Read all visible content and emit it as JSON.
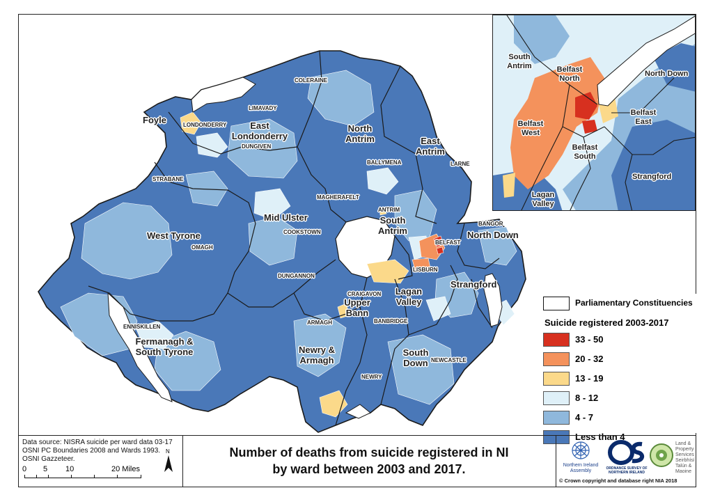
{
  "title_line1": "Number of deaths from suicide registered in NI",
  "title_line2": "by ward between 2003 and 2017.",
  "source_lines": [
    "Data source: NISRA suicide per ward data 03-17",
    "OSNI PC Boundaries 2008 and Wards 1993.",
    "OSNI Gazzeteer."
  ],
  "scale_bar": {
    "labels": [
      "0",
      "5",
      "10",
      "20 Miles"
    ]
  },
  "north_arrow_label": "N",
  "copyright": "© Crown copyright and database right NIA 2018",
  "logos": {
    "nia": "Northern Ireland Assembly",
    "os": "ORDNANCE SURVEY OF NORTHERN IRELAND",
    "lps": [
      "Land &",
      "Property",
      "Services",
      "Seirbhísí",
      "Talún &",
      "Maoine"
    ]
  },
  "legend": {
    "boundary_label": "Parliamentary Constituencies",
    "heading": "Suicide registered 2003-2017",
    "classes": [
      {
        "label": "33 - 50",
        "color": "#d7301f"
      },
      {
        "label": "20 - 32",
        "color": "#f4925c"
      },
      {
        "label": "13 - 19",
        "color": "#fbd98a"
      },
      {
        "label": "8 - 12",
        "color": "#dff0f8"
      },
      {
        "label": "4 - 7",
        "color": "#8fb8dc"
      },
      {
        "label": "Less than 4",
        "color": "#4a78b8"
      }
    ]
  },
  "constituencies": {
    "foyle": "Foyle",
    "east_londonderry": [
      "East",
      "Londonderry"
    ],
    "north_antrim": [
      "North",
      "Antrim"
    ],
    "east_antrim": [
      "East",
      "Antrim"
    ],
    "mid_ulster": "Mid Ulster",
    "west_tyrone": "West Tyrone",
    "south_antrim": [
      "South",
      "Antrim"
    ],
    "north_down": "North Down",
    "lagan_valley": [
      "Lagan",
      "Valley"
    ],
    "strangford": "Strangford",
    "upper_bann": [
      "Upper",
      "Bann"
    ],
    "fermanagh_south_tyrone": [
      "Fermanagh &",
      "South Tyrone"
    ],
    "newry_armagh": [
      "Newry &",
      "Armagh"
    ],
    "south_down": [
      "South",
      "Down"
    ]
  },
  "towns": {
    "coleraine": "COLERAINE",
    "limavady": "LIMAVADY",
    "londonderry": "LONDONDERRY",
    "dungiven": "DUNGIVEN",
    "ballymena": "BALLYMENA",
    "larne": "LARNE",
    "strabane": "STRABANE",
    "magherafelt": "MAGHERAFELT",
    "antrim": "ANTRIM",
    "cookstown": "COOKSTOWN",
    "omagh": "OMAGH",
    "bangor": "BANGOR",
    "belfast": "BELFAST",
    "lisburn": "LISBURN",
    "dungannon": "DUNGANNON",
    "craigavon": "CRAIGAVON",
    "armagh": "ARMAGH",
    "banbridge": "BANBRIDGE",
    "enniskillen": "ENNISKILLEN",
    "newcastle": "NEWCASTLE",
    "newry": "NEWRY"
  },
  "inset": {
    "south_antrim": [
      "South",
      "Antrim"
    ],
    "belfast_north": [
      "Belfast",
      "North"
    ],
    "north_down": "North Down",
    "belfast_east": [
      "Belfast",
      "East"
    ],
    "belfast_west": [
      "Belfast",
      "West"
    ],
    "belfast_south": [
      "Belfast",
      "South"
    ],
    "strangford": "Strangford",
    "lagan_valley": [
      "Lagan",
      "Valley"
    ]
  }
}
